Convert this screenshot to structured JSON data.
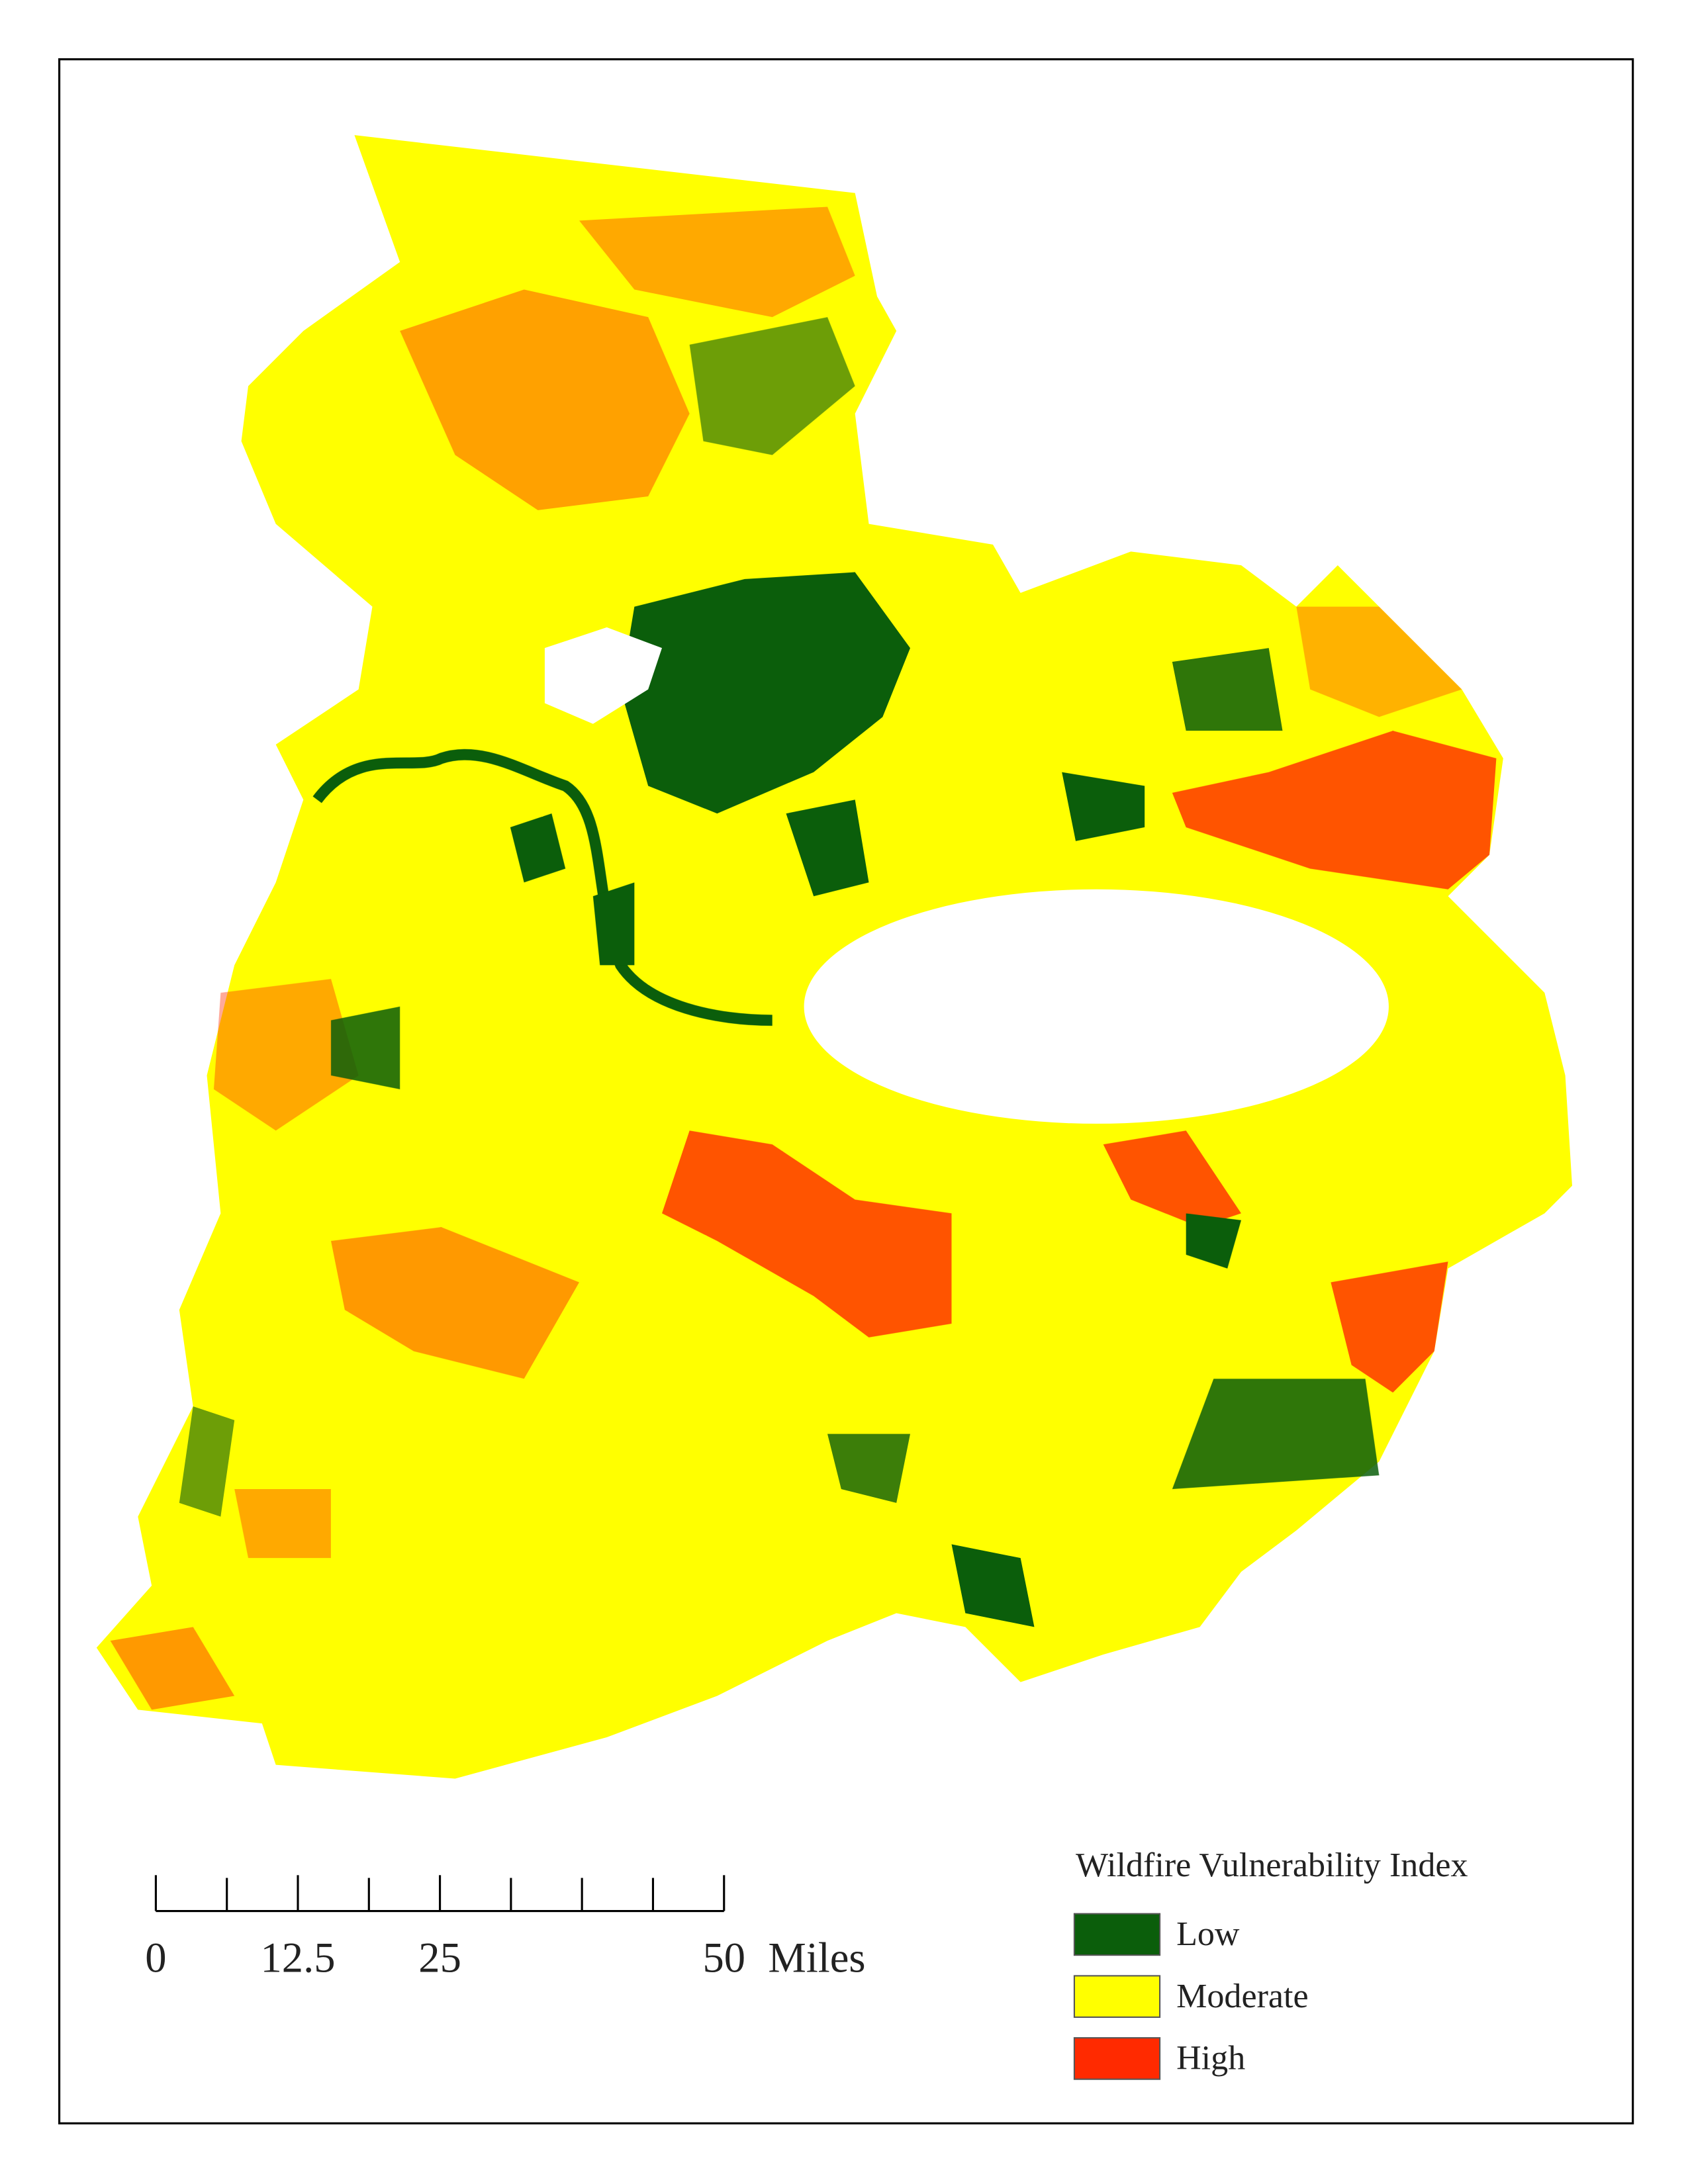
{
  "legend": {
    "title": "Wildfire Vulnerability Index",
    "items": [
      {
        "label": "Low",
        "color": "#0b5e0b"
      },
      {
        "label": "Moderate",
        "color": "#ffff00"
      },
      {
        "label": "High",
        "color": "#ff2a00"
      }
    ]
  },
  "scale_bar": {
    "ticks": [
      0,
      12.5,
      25,
      50
    ],
    "unit": "Miles"
  }
}
